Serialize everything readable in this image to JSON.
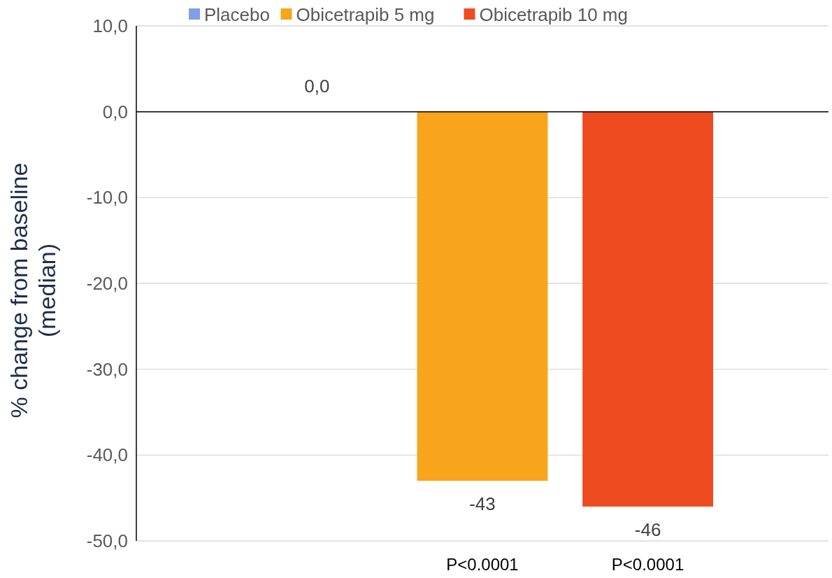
{
  "chart_data": {
    "type": "bar",
    "ylabel": "% change from baseline\n(median)",
    "categories": [
      null,
      "P<0.0001",
      "P<0.0001"
    ],
    "series": [
      {
        "name": "Placebo",
        "color": "#7f9fe6",
        "values": [
          0,
          null,
          null
        ],
        "value_labels": [
          "0,0",
          null,
          null
        ]
      },
      {
        "name": "Obicetrapib 5 mg",
        "color": "#f8a51c",
        "values": [
          null,
          -43,
          null
        ],
        "value_labels": [
          null,
          "-43",
          null
        ]
      },
      {
        "name": "Obicetrapib 10 mg",
        "color": "#ef4b21",
        "values": [
          null,
          null,
          -46
        ],
        "value_labels": [
          null,
          null,
          "-46"
        ]
      }
    ],
    "ylim": [
      -50,
      10
    ],
    "yticks": [
      {
        "value": 10,
        "label": "10,0"
      },
      {
        "value": 0,
        "label": "0,0"
      },
      {
        "value": -10,
        "label": "-10,0"
      },
      {
        "value": -20,
        "label": "-20,0"
      },
      {
        "value": -30,
        "label": "-30,0"
      },
      {
        "value": -40,
        "label": "-40,0"
      },
      {
        "value": -50,
        "label": "-50,0"
      }
    ],
    "grid": "y",
    "legend": "top"
  }
}
